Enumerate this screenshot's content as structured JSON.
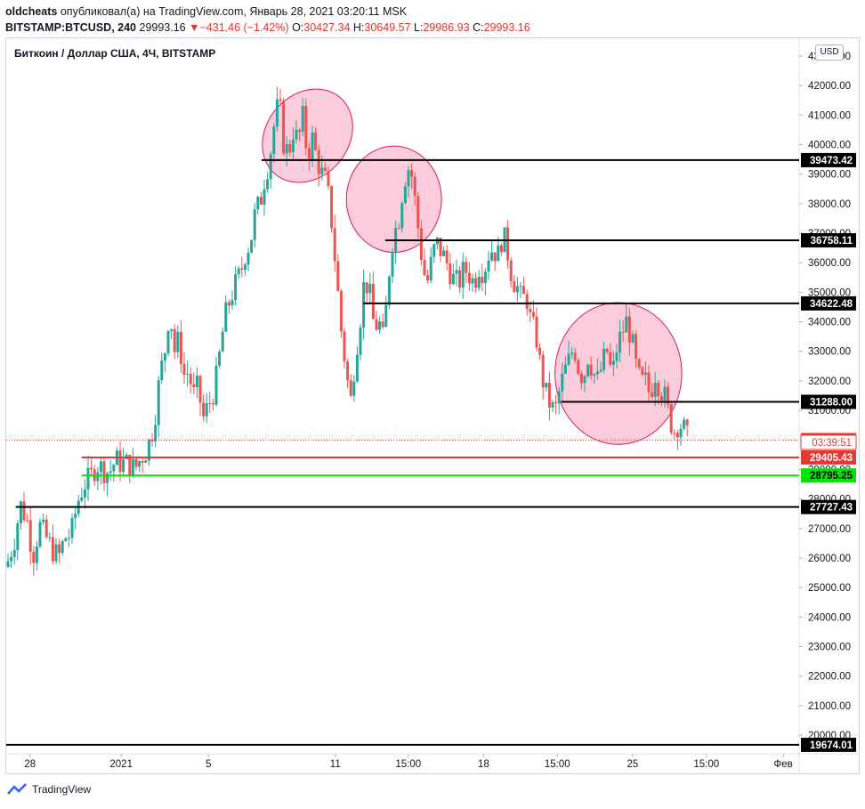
{
  "header": {
    "user": "oldcheats",
    "published": "опубликовал(а) на TradingView.com, Январь 28, 2021 03:20:11 MSK",
    "symbol_interval": "BITSTAMP:BTCUSD, 240",
    "last": "29993.16",
    "arrow": "▼",
    "change": "−431.46 (−1.42%)",
    "o_label": "O:",
    "o_value": "30427.34",
    "h_label": "H:",
    "h_value": "30649.57",
    "l_label": "L:",
    "l_value": "29986.93",
    "c_label": "C:",
    "c_value": "29993.16"
  },
  "legend_title": "Биткоин / Доллар США, 4Ч, BITSTAMP",
  "currency": "USD",
  "footer_brand": "TradingView",
  "chart_data": {
    "type": "candlestick",
    "ylim": [
      19400,
      43600
    ],
    "y_ticks": [
      20000,
      21000,
      22000,
      23000,
      24000,
      25000,
      26000,
      27000,
      28000,
      29000,
      30000,
      31000,
      32000,
      33000,
      34000,
      35000,
      36000,
      37000,
      38000,
      39000,
      40000,
      41000,
      42000,
      43000
    ],
    "y_tick_labels": [
      "20000.00",
      "21000.00",
      "22000.00",
      "23000.00",
      "24000.00",
      "25000.00",
      "26000.00",
      "27000.00",
      "28000.00",
      "29000.00",
      "30000.00",
      "31000.00",
      "32000.00",
      "33000.00",
      "34000.00",
      "35000.00",
      "36000.00",
      "37000.00",
      "38000.00",
      "39000.00",
      "40000.00",
      "41000.00",
      "42000.00",
      "43000.00"
    ],
    "x_ticks": [
      {
        "label": "28",
        "t": 0.03
      },
      {
        "label": "2021",
        "t": 0.145
      },
      {
        "label": "5",
        "t": 0.255
      },
      {
        "label": "11",
        "t": 0.415
      },
      {
        "label": "15:00",
        "t": 0.507
      },
      {
        "label": "18",
        "t": 0.602
      },
      {
        "label": "15:00",
        "t": 0.695
      },
      {
        "label": "25",
        "t": 0.79
      },
      {
        "label": "15:00",
        "t": 0.883
      },
      {
        "label": "Фев",
        "t": 0.98
      }
    ],
    "price_path": [
      [
        0.0,
        25700
      ],
      [
        0.01,
        26600
      ],
      [
        0.018,
        27800
      ],
      [
        0.026,
        27300
      ],
      [
        0.034,
        26100
      ],
      [
        0.042,
        27100
      ],
      [
        0.05,
        26700
      ],
      [
        0.058,
        26300
      ],
      [
        0.066,
        26000
      ],
      [
        0.074,
        26700
      ],
      [
        0.082,
        26800
      ],
      [
        0.09,
        27900
      ],
      [
        0.098,
        28500
      ],
      [
        0.106,
        28700
      ],
      [
        0.114,
        29200
      ],
      [
        0.122,
        29000
      ],
      [
        0.13,
        28900
      ],
      [
        0.138,
        29300
      ],
      [
        0.146,
        29200
      ],
      [
        0.154,
        29200
      ],
      [
        0.162,
        29000
      ],
      [
        0.17,
        29400
      ],
      [
        0.178,
        29700
      ],
      [
        0.186,
        30500
      ],
      [
        0.194,
        32200
      ],
      [
        0.2,
        33000
      ],
      [
        0.206,
        34500
      ],
      [
        0.212,
        33000
      ],
      [
        0.218,
        33400
      ],
      [
        0.224,
        32200
      ],
      [
        0.23,
        32300
      ],
      [
        0.236,
        31500
      ],
      [
        0.242,
        31800
      ],
      [
        0.248,
        30700
      ],
      [
        0.254,
        31100
      ],
      [
        0.26,
        31500
      ],
      [
        0.266,
        32200
      ],
      [
        0.272,
        33500
      ],
      [
        0.278,
        34400
      ],
      [
        0.284,
        34900
      ],
      [
        0.29,
        35300
      ],
      [
        0.296,
        35700
      ],
      [
        0.302,
        36400
      ],
      [
        0.308,
        36700
      ],
      [
        0.314,
        37700
      ],
      [
        0.32,
        38000
      ],
      [
        0.326,
        38900
      ],
      [
        0.332,
        39500
      ],
      [
        0.338,
        40700
      ],
      [
        0.344,
        41500
      ],
      [
        0.35,
        40000
      ],
      [
        0.356,
        39700
      ],
      [
        0.362,
        40500
      ],
      [
        0.368,
        40100
      ],
      [
        0.374,
        40900
      ],
      [
        0.38,
        39600
      ],
      [
        0.386,
        40200
      ],
      [
        0.392,
        39500
      ],
      [
        0.398,
        39000
      ],
      [
        0.404,
        38700
      ],
      [
        0.41,
        37500
      ],
      [
        0.416,
        35700
      ],
      [
        0.422,
        33800
      ],
      [
        0.428,
        32500
      ],
      [
        0.434,
        31200
      ],
      [
        0.44,
        32800
      ],
      [
        0.446,
        34000
      ],
      [
        0.452,
        35500
      ],
      [
        0.458,
        35000
      ],
      [
        0.464,
        33800
      ],
      [
        0.47,
        34000
      ],
      [
        0.476,
        33300
      ],
      [
        0.482,
        35500
      ],
      [
        0.488,
        37000
      ],
      [
        0.494,
        37300
      ],
      [
        0.5,
        38500
      ],
      [
        0.506,
        39300
      ],
      [
        0.512,
        38900
      ],
      [
        0.518,
        37500
      ],
      [
        0.524,
        36200
      ],
      [
        0.53,
        35200
      ],
      [
        0.536,
        36000
      ],
      [
        0.542,
        36700
      ],
      [
        0.548,
        36400
      ],
      [
        0.554,
        36100
      ],
      [
        0.56,
        35700
      ],
      [
        0.566,
        35300
      ],
      [
        0.572,
        35400
      ],
      [
        0.578,
        35800
      ],
      [
        0.584,
        35600
      ],
      [
        0.59,
        35300
      ],
      [
        0.596,
        35900
      ],
      [
        0.602,
        35700
      ],
      [
        0.608,
        36300
      ],
      [
        0.614,
        36500
      ],
      [
        0.62,
        36200
      ],
      [
        0.626,
        37000
      ],
      [
        0.632,
        36400
      ],
      [
        0.638,
        35500
      ],
      [
        0.644,
        35200
      ],
      [
        0.65,
        34700
      ],
      [
        0.656,
        34900
      ],
      [
        0.662,
        33900
      ],
      [
        0.668,
        33600
      ],
      [
        0.674,
        32400
      ],
      [
        0.68,
        31600
      ],
      [
        0.686,
        31200
      ],
      [
        0.692,
        30900
      ],
      [
        0.698,
        31700
      ],
      [
        0.704,
        32300
      ],
      [
        0.71,
        32700
      ],
      [
        0.716,
        33200
      ],
      [
        0.722,
        32400
      ],
      [
        0.728,
        32100
      ],
      [
        0.734,
        32900
      ],
      [
        0.74,
        32300
      ],
      [
        0.746,
        32000
      ],
      [
        0.752,
        32600
      ],
      [
        0.758,
        33000
      ],
      [
        0.764,
        32100
      ],
      [
        0.77,
        33100
      ],
      [
        0.776,
        33600
      ],
      [
        0.782,
        34000
      ],
      [
        0.788,
        33500
      ],
      [
        0.794,
        32500
      ],
      [
        0.8,
        31900
      ],
      [
        0.806,
        32000
      ],
      [
        0.812,
        31500
      ],
      [
        0.818,
        32300
      ],
      [
        0.824,
        31800
      ],
      [
        0.83,
        31500
      ],
      [
        0.836,
        30800
      ],
      [
        0.842,
        30300
      ],
      [
        0.848,
        30600
      ],
      [
        0.854,
        30400
      ],
      [
        0.86,
        29993
      ]
    ],
    "horizontal_levels": [
      {
        "value": 39473.42,
        "label": "39473.42",
        "color": "#000000",
        "start": 0.322
      },
      {
        "value": 36758.11,
        "label": "36758.11",
        "color": "#000000",
        "start": 0.478
      },
      {
        "value": 34622.48,
        "label": "34622.48",
        "color": "#000000",
        "start": 0.45
      },
      {
        "value": 31288.0,
        "label": "31288.00",
        "color": "#000000",
        "start": 0.7
      },
      {
        "value": 29405.43,
        "label": "29405.43",
        "color": "#e53935",
        "start": 0.095
      },
      {
        "value": 28795.25,
        "label": "28795.25",
        "color": "#00e600",
        "start": 0.095
      },
      {
        "value": 27727.43,
        "label": "27727.43",
        "color": "#000000",
        "start": 0.012
      },
      {
        "value": 19674.01,
        "label": "19674.01",
        "color": "#000000",
        "start": 0.0
      }
    ],
    "last_price": {
      "value": 29993.16,
      "label": "29993.16",
      "color": "#e53935"
    },
    "countdown": "03:39:51",
    "highlight_circles": [
      {
        "cx_t": 0.38,
        "cy": 40300,
        "rx_t": 0.052,
        "ry": 1700,
        "angle": 40
      },
      {
        "cx_t": 0.489,
        "cy": 38150,
        "rx_t": 0.06,
        "ry": 1800,
        "angle": 0
      },
      {
        "cx_t": 0.772,
        "cy": 32250,
        "rx_t": 0.08,
        "ry": 2400,
        "angle": 0
      }
    ],
    "colors": {
      "up": "#26a69a",
      "down": "#ef5350",
      "circle_fill": "#f8bbd0",
      "circle_stroke": "#d81b60"
    }
  }
}
